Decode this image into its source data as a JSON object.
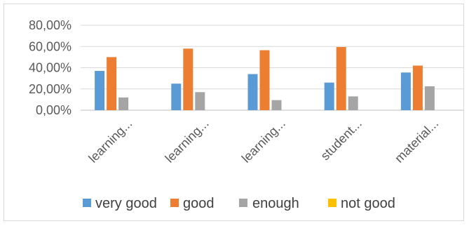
{
  "chart_data": {
    "type": "bar",
    "title": "",
    "xlabel": "",
    "ylabel": "",
    "categories": [
      "learning...",
      "learning...",
      "learning...",
      "student...",
      "material..."
    ],
    "series": [
      {
        "name": "very good",
        "color": "#5b9bd5",
        "values": [
          0.37,
          0.25,
          0.34,
          0.26,
          0.355
        ]
      },
      {
        "name": "good",
        "color": "#ed7d31",
        "values": [
          0.5,
          0.58,
          0.565,
          0.595,
          0.42
        ]
      },
      {
        "name": "enough",
        "color": "#a5a5a5",
        "values": [
          0.12,
          0.17,
          0.095,
          0.13,
          0.225
        ]
      },
      {
        "name": "not good",
        "color": "#ffc000",
        "values": [
          0,
          0,
          0,
          0,
          0
        ]
      }
    ],
    "y_ticks": [
      "0,00%",
      "20,00%",
      "40,00%",
      "60,00%",
      "80,00%"
    ],
    "ylim": [
      0,
      0.8
    ],
    "grid": true,
    "legend_position": "bottom"
  }
}
